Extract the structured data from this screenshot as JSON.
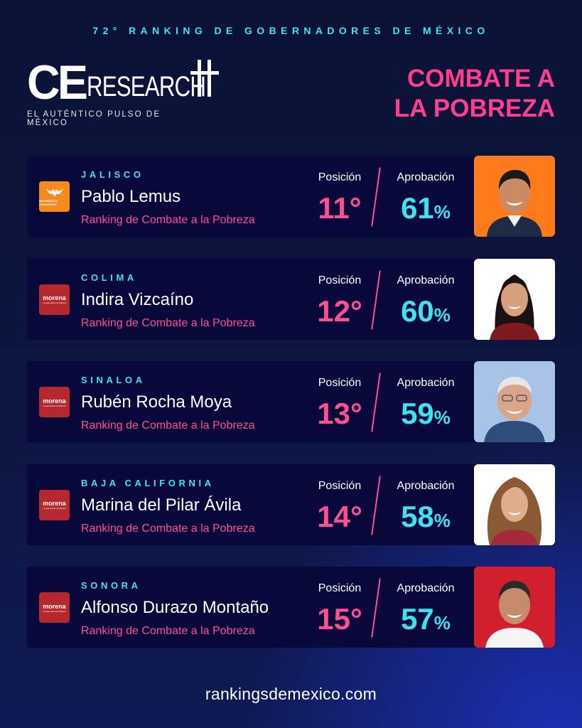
{
  "header": {
    "top_title": "72° RANKING DE GOBERNADORES DE MÉXICO",
    "brand": {
      "ce": "CE",
      "research": "RESEARCH",
      "tagline": "EL AUTÉNTICO PULSO DE MÉXICO"
    },
    "category_line1": "COMBATE A",
    "category_line2": "LA POBREZA"
  },
  "labels": {
    "position": "Posición",
    "approval": "Aprobación",
    "subtitle": "Ranking de Combate a la Pobreza",
    "percent": "%"
  },
  "governors": [
    {
      "state": "JALISCO",
      "name": "Pablo Lemus",
      "position": "11°",
      "approval": "61",
      "party": "mc",
      "party_label": "MOVIMIENTO CIUDADANO",
      "photo_bg": "#ff7a1a"
    },
    {
      "state": "COLIMA",
      "name": "Indira Vizcaíno",
      "position": "12°",
      "approval": "60",
      "party": "morena",
      "party_label": "morena",
      "party_sub": "La esperanza de México",
      "photo_bg": "#ffffff"
    },
    {
      "state": "SINALOA",
      "name": "Rubén Rocha Moya",
      "position": "13°",
      "approval": "59",
      "party": "morena",
      "party_label": "morena",
      "party_sub": "La esperanza de México",
      "photo_bg": "#a9c3e6"
    },
    {
      "state": "BAJA CALIFORNIA",
      "name": "Marina del Pilar Ávila",
      "position": "14°",
      "approval": "58",
      "party": "morena",
      "party_label": "morena",
      "party_sub": "La esperanza de México",
      "photo_bg": "#ffffff"
    },
    {
      "state": "SONORA",
      "name": "Alfonso Durazo Montaño",
      "position": "15°",
      "approval": "57",
      "party": "morena",
      "party_label": "morena",
      "party_sub": "La esperanza de México",
      "photo_bg": "#d11f2e"
    }
  ],
  "footer": {
    "url": "rankingsdemexico.com"
  },
  "colors": {
    "cyan": "#3fe3f0",
    "pink": "#ff4f93",
    "card": "#08083a"
  }
}
